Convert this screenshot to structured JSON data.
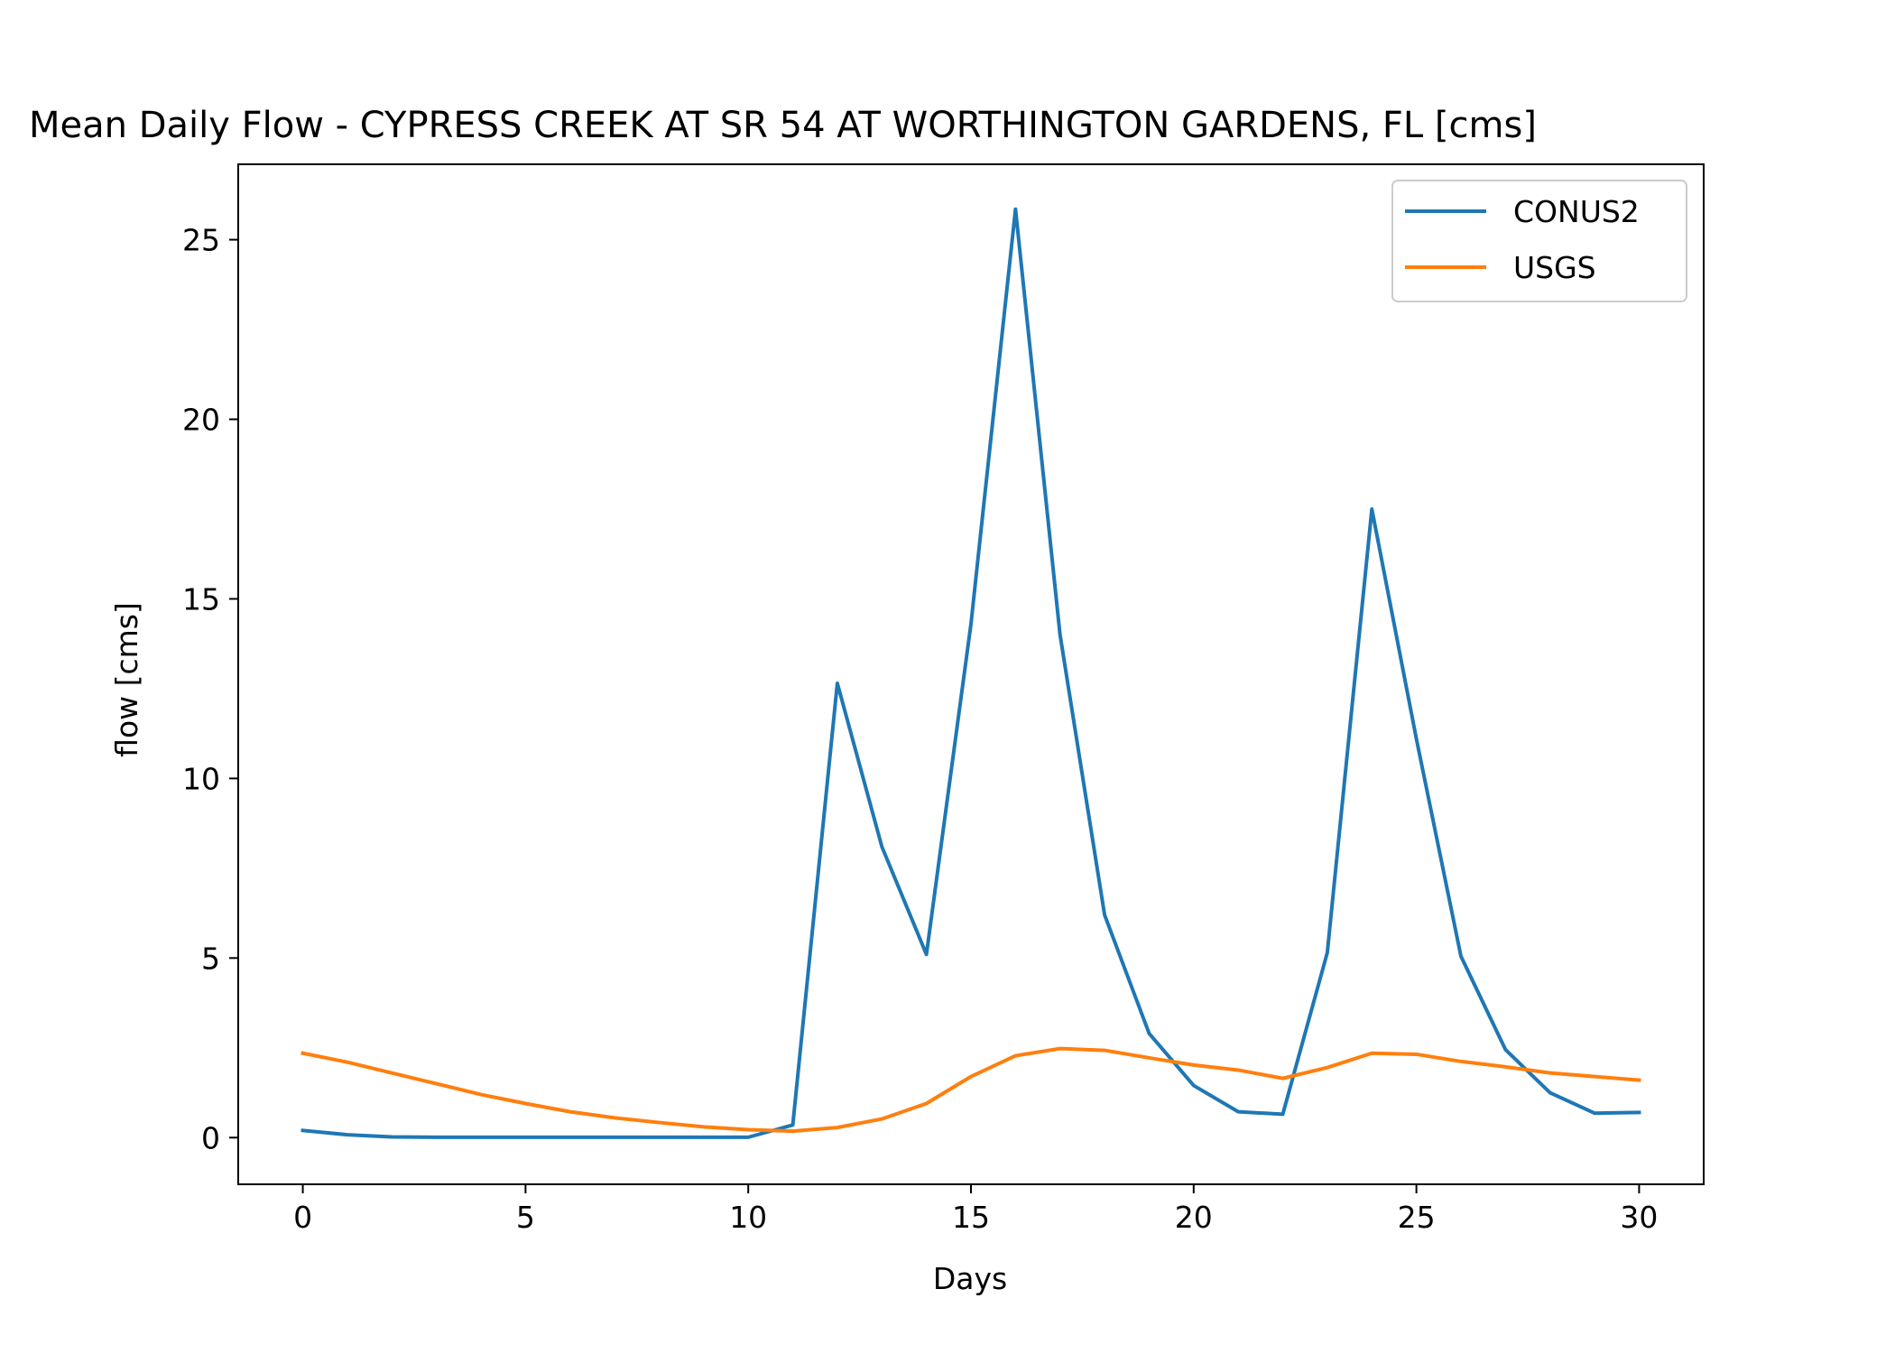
{
  "chart_data": {
    "type": "line",
    "title": "Mean Daily Flow - CYPRESS CREEK AT SR 54 AT WORTHINGTON GARDENS, FL [cms]",
    "xlabel": "Days",
    "ylabel": "flow [cms]",
    "xlim": [
      -1.45,
      31.45
    ],
    "ylim": [
      -1.3,
      27.1
    ],
    "xticks": [
      0,
      5,
      10,
      15,
      20,
      25,
      30
    ],
    "yticks": [
      0,
      5,
      10,
      15,
      20,
      25
    ],
    "grid": false,
    "legend_position": "top-right",
    "x": [
      0,
      1,
      2,
      3,
      4,
      5,
      6,
      7,
      8,
      9,
      10,
      11,
      12,
      13,
      14,
      15,
      16,
      17,
      18,
      19,
      20,
      21,
      22,
      23,
      24,
      25,
      26,
      27,
      28,
      29,
      30
    ],
    "series": [
      {
        "name": "CONUS2",
        "color": "#1f77b4",
        "values": [
          0.2,
          0.08,
          0.02,
          0.01,
          0.01,
          0.01,
          0.01,
          0.01,
          0.01,
          0.01,
          0.01,
          0.35,
          12.65,
          8.1,
          5.1,
          14.3,
          25.85,
          14.0,
          6.2,
          2.9,
          1.45,
          0.72,
          0.65,
          5.15,
          17.5,
          11.1,
          5.05,
          2.45,
          1.25,
          0.68,
          0.7
        ]
      },
      {
        "name": "USGS",
        "color": "#ff7f0e",
        "values": [
          2.35,
          2.1,
          1.8,
          1.5,
          1.2,
          0.95,
          0.72,
          0.55,
          0.42,
          0.3,
          0.22,
          0.18,
          0.28,
          0.52,
          0.95,
          1.7,
          2.28,
          2.48,
          2.43,
          2.22,
          2.02,
          1.88,
          1.65,
          1.95,
          2.35,
          2.32,
          2.12,
          1.97,
          1.8,
          1.7,
          1.6
        ]
      }
    ]
  }
}
